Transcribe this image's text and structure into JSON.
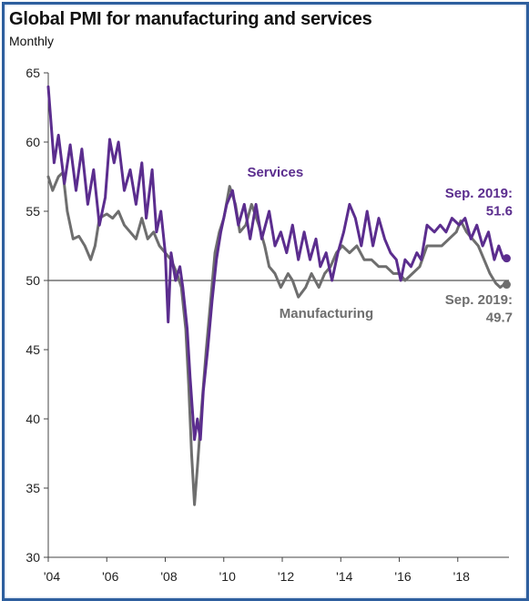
{
  "chart_data": {
    "type": "line",
    "title": "Global PMI for manufacturing and services",
    "subtitle": "Monthly",
    "xlabel": "",
    "ylabel": "",
    "x_range": [
      2004.0,
      2019.75
    ],
    "ylim": [
      30,
      65
    ],
    "y_ticks": [
      30,
      35,
      40,
      45,
      50,
      55,
      60,
      65
    ],
    "x_ticks": [
      {
        "x": 2004,
        "label": "'04"
      },
      {
        "x": 2006,
        "label": "'06"
      },
      {
        "x": 2008,
        "label": "'08"
      },
      {
        "x": 2010,
        "label": "'10"
      },
      {
        "x": 2012,
        "label": "'12"
      },
      {
        "x": 2014,
        "label": "'14"
      },
      {
        "x": 2016,
        "label": "'16"
      },
      {
        "x": 2018,
        "label": "'18"
      }
    ],
    "reference_line": 50,
    "grid": false,
    "series": [
      {
        "name": "Services",
        "color": "#5b2d8e",
        "points": [
          [
            2004.0,
            64.0
          ],
          [
            2004.2,
            58.5
          ],
          [
            2004.35,
            60.5
          ],
          [
            2004.55,
            57.0
          ],
          [
            2004.75,
            59.8
          ],
          [
            2004.95,
            56.5
          ],
          [
            2005.15,
            59.5
          ],
          [
            2005.35,
            55.5
          ],
          [
            2005.55,
            58.0
          ],
          [
            2005.75,
            54.0
          ],
          [
            2005.95,
            56.0
          ],
          [
            2006.1,
            60.2
          ],
          [
            2006.25,
            58.5
          ],
          [
            2006.4,
            60.0
          ],
          [
            2006.6,
            56.5
          ],
          [
            2006.8,
            58.0
          ],
          [
            2007.0,
            55.5
          ],
          [
            2007.2,
            58.5
          ],
          [
            2007.35,
            54.5
          ],
          [
            2007.55,
            58.0
          ],
          [
            2007.7,
            53.5
          ],
          [
            2007.85,
            55.0
          ],
          [
            2008.0,
            52.0
          ],
          [
            2008.1,
            47.0
          ],
          [
            2008.2,
            52.0
          ],
          [
            2008.35,
            50.0
          ],
          [
            2008.5,
            51.0
          ],
          [
            2008.6,
            49.5
          ],
          [
            2008.75,
            46.5
          ],
          [
            2008.85,
            43.0
          ],
          [
            2009.0,
            38.5
          ],
          [
            2009.1,
            40.0
          ],
          [
            2009.2,
            38.5
          ],
          [
            2009.3,
            42.0
          ],
          [
            2009.45,
            45.0
          ],
          [
            2009.6,
            48.5
          ],
          [
            2009.75,
            51.5
          ],
          [
            2009.9,
            53.5
          ],
          [
            2010.1,
            55.5
          ],
          [
            2010.3,
            56.5
          ],
          [
            2010.5,
            54.0
          ],
          [
            2010.7,
            55.5
          ],
          [
            2010.9,
            53.0
          ],
          [
            2011.1,
            55.5
          ],
          [
            2011.3,
            53.0
          ],
          [
            2011.55,
            55.0
          ],
          [
            2011.75,
            52.5
          ],
          [
            2011.95,
            53.5
          ],
          [
            2012.15,
            52.0
          ],
          [
            2012.35,
            54.0
          ],
          [
            2012.55,
            51.5
          ],
          [
            2012.75,
            53.5
          ],
          [
            2012.95,
            51.5
          ],
          [
            2013.15,
            53.0
          ],
          [
            2013.3,
            51.0
          ],
          [
            2013.5,
            52.0
          ],
          [
            2013.7,
            50.0
          ],
          [
            2013.9,
            52.0
          ],
          [
            2014.1,
            53.5
          ],
          [
            2014.3,
            55.5
          ],
          [
            2014.5,
            54.5
          ],
          [
            2014.7,
            52.5
          ],
          [
            2014.9,
            55.0
          ],
          [
            2015.1,
            52.5
          ],
          [
            2015.3,
            54.5
          ],
          [
            2015.5,
            53.0
          ],
          [
            2015.7,
            52.0
          ],
          [
            2015.9,
            51.5
          ],
          [
            2016.05,
            50.0
          ],
          [
            2016.2,
            51.5
          ],
          [
            2016.4,
            51.0
          ],
          [
            2016.6,
            52.0
          ],
          [
            2016.75,
            51.5
          ],
          [
            2016.95,
            54.0
          ],
          [
            2017.2,
            53.5
          ],
          [
            2017.4,
            54.0
          ],
          [
            2017.6,
            53.5
          ],
          [
            2017.8,
            54.5
          ],
          [
            2018.05,
            54.0
          ],
          [
            2018.25,
            54.5
          ],
          [
            2018.45,
            53.0
          ],
          [
            2018.65,
            54.0
          ],
          [
            2018.85,
            52.5
          ],
          [
            2019.05,
            53.5
          ],
          [
            2019.25,
            51.5
          ],
          [
            2019.4,
            52.5
          ],
          [
            2019.55,
            51.6
          ],
          [
            2019.67,
            51.6
          ]
        ]
      },
      {
        "name": "Manufacturing",
        "color": "#6e6e6e",
        "points": [
          [
            2004.0,
            57.5
          ],
          [
            2004.15,
            56.5
          ],
          [
            2004.35,
            57.5
          ],
          [
            2004.5,
            57.8
          ],
          [
            2004.65,
            55.0
          ],
          [
            2004.85,
            53.0
          ],
          [
            2005.05,
            53.2
          ],
          [
            2005.25,
            52.5
          ],
          [
            2005.45,
            51.5
          ],
          [
            2005.6,
            52.5
          ],
          [
            2005.75,
            54.5
          ],
          [
            2006.0,
            54.8
          ],
          [
            2006.2,
            54.5
          ],
          [
            2006.4,
            55.0
          ],
          [
            2006.6,
            54.0
          ],
          [
            2006.8,
            53.5
          ],
          [
            2007.0,
            53.0
          ],
          [
            2007.2,
            54.5
          ],
          [
            2007.4,
            53.0
          ],
          [
            2007.6,
            53.5
          ],
          [
            2007.8,
            52.5
          ],
          [
            2008.0,
            52.0
          ],
          [
            2008.2,
            51.5
          ],
          [
            2008.4,
            50.5
          ],
          [
            2008.55,
            49.5
          ],
          [
            2008.7,
            46.5
          ],
          [
            2008.8,
            42.5
          ],
          [
            2008.9,
            37.5
          ],
          [
            2009.0,
            33.8
          ],
          [
            2009.1,
            36.5
          ],
          [
            2009.25,
            41.0
          ],
          [
            2009.4,
            45.0
          ],
          [
            2009.55,
            48.5
          ],
          [
            2009.7,
            52.0
          ],
          [
            2009.85,
            53.5
          ],
          [
            2010.0,
            54.5
          ],
          [
            2010.2,
            56.8
          ],
          [
            2010.4,
            55.5
          ],
          [
            2010.55,
            53.5
          ],
          [
            2010.75,
            54.0
          ],
          [
            2010.95,
            55.5
          ],
          [
            2011.2,
            54.0
          ],
          [
            2011.4,
            52.5
          ],
          [
            2011.55,
            51.0
          ],
          [
            2011.75,
            50.5
          ],
          [
            2011.95,
            49.5
          ],
          [
            2012.2,
            50.5
          ],
          [
            2012.35,
            50.0
          ],
          [
            2012.55,
            48.8
          ],
          [
            2012.8,
            49.5
          ],
          [
            2013.0,
            50.5
          ],
          [
            2013.25,
            49.5
          ],
          [
            2013.45,
            50.5
          ],
          [
            2013.65,
            51.0
          ],
          [
            2013.85,
            52.0
          ],
          [
            2014.05,
            52.5
          ],
          [
            2014.3,
            52.0
          ],
          [
            2014.55,
            52.5
          ],
          [
            2014.8,
            51.5
          ],
          [
            2015.05,
            51.5
          ],
          [
            2015.3,
            51.0
          ],
          [
            2015.55,
            51.0
          ],
          [
            2015.8,
            50.5
          ],
          [
            2016.0,
            50.5
          ],
          [
            2016.2,
            50.0
          ],
          [
            2016.45,
            50.5
          ],
          [
            2016.7,
            51.0
          ],
          [
            2016.95,
            52.5
          ],
          [
            2017.2,
            52.5
          ],
          [
            2017.45,
            52.5
          ],
          [
            2017.7,
            53.0
          ],
          [
            2017.95,
            53.5
          ],
          [
            2018.1,
            54.3
          ],
          [
            2018.3,
            53.5
          ],
          [
            2018.5,
            53.0
          ],
          [
            2018.7,
            52.5
          ],
          [
            2018.9,
            51.5
          ],
          [
            2019.1,
            50.5
          ],
          [
            2019.3,
            49.8
          ],
          [
            2019.45,
            49.5
          ],
          [
            2019.58,
            49.7
          ],
          [
            2019.67,
            49.7
          ]
        ]
      }
    ],
    "annotations": [
      {
        "text": "Services",
        "series": "Services",
        "x": 2010.8,
        "y": 57.5
      },
      {
        "text": "Manufacturing",
        "series": "Manufacturing",
        "x": 2011.9,
        "y": 47.3
      },
      {
        "text": "Sep. 2019:",
        "series": "Services",
        "x": 2019.95,
        "y": 56.0
      },
      {
        "text": "51.6",
        "series": "Services",
        "x": 2019.95,
        "y": 54.7
      },
      {
        "text": "Sep. 2019:",
        "series": "Manufacturing",
        "x": 2019.95,
        "y": 48.3
      },
      {
        "text": "49.7",
        "series": "Manufacturing",
        "x": 2019.95,
        "y": 47.0
      }
    ]
  }
}
